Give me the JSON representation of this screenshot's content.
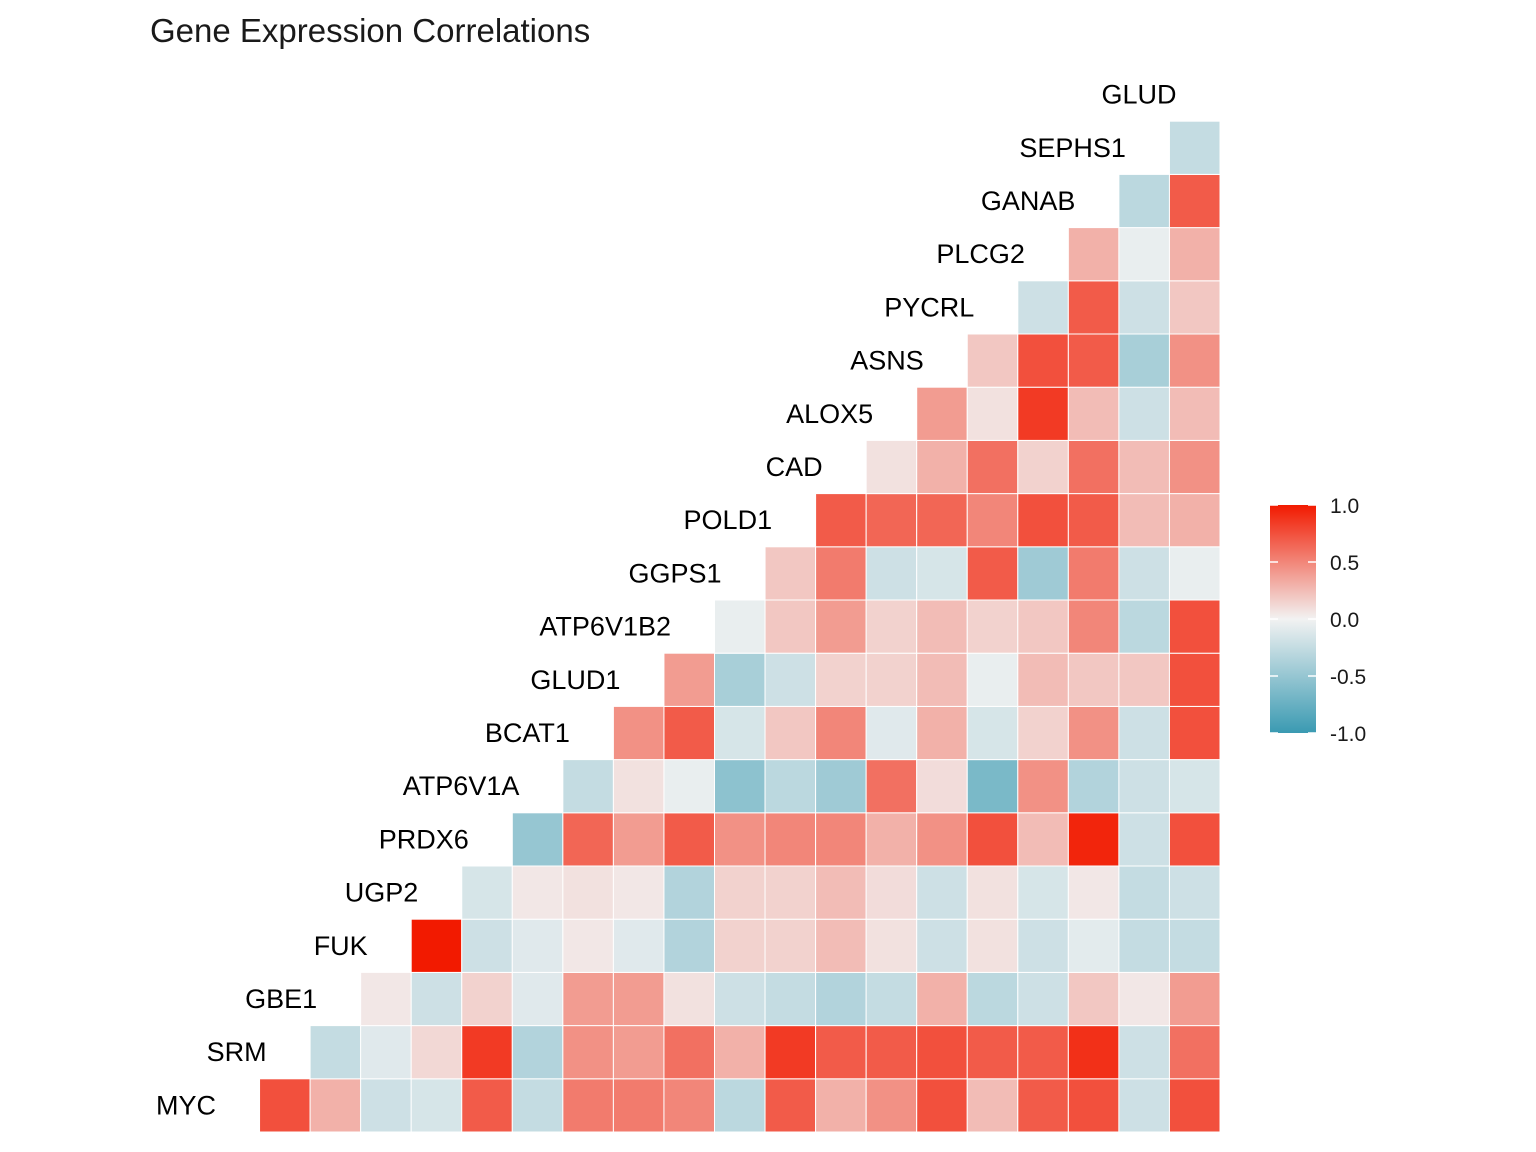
{
  "chart_data": {
    "type": "heatmap",
    "title": "Gene Expression Correlations",
    "genes": [
      "MYC",
      "SRM",
      "GBE1",
      "FUK",
      "UGP2",
      "PRDX6",
      "ATP6V1A",
      "BCAT1",
      "GLUD1",
      "ATP6V1B2",
      "GGPS1",
      "POLD1",
      "CAD",
      "ALOX5",
      "ASNS",
      "PYCRL",
      "PLCG2",
      "GANAB",
      "SEPHS1",
      "GLUD"
    ],
    "rows": [
      [
        0.75
      ],
      [
        0.3,
        -0.25
      ],
      [
        -0.2,
        -0.1,
        0.05
      ],
      [
        -0.15,
        0.12,
        -0.2,
        1.0
      ],
      [
        0.7,
        0.85,
        0.15,
        -0.2,
        -0.15
      ],
      [
        -0.25,
        -0.35,
        -0.1,
        -0.1,
        0.05,
        -0.5
      ],
      [
        0.55,
        0.45,
        0.4,
        0.05,
        0.08,
        0.65,
        -0.25
      ],
      [
        0.55,
        0.4,
        0.4,
        -0.1,
        0.05,
        0.4,
        0.08,
        0.45
      ],
      [
        0.5,
        0.6,
        0.08,
        -0.35,
        -0.35,
        0.7,
        -0.05,
        0.7,
        0.4
      ],
      [
        -0.3,
        0.3,
        -0.2,
        0.15,
        0.15,
        0.45,
        -0.55,
        -0.15,
        -0.4,
        -0.05
      ],
      [
        0.7,
        0.85,
        -0.25,
        0.15,
        0.15,
        0.5,
        -0.3,
        0.2,
        -0.2,
        0.2,
        0.2
      ],
      [
        0.3,
        0.7,
        -0.35,
        0.25,
        0.25,
        0.5,
        -0.45,
        0.5,
        0.15,
        0.4,
        0.55,
        0.7
      ],
      [
        0.45,
        0.7,
        -0.25,
        0.08,
        0.1,
        0.3,
        0.6,
        -0.1,
        0.15,
        0.15,
        -0.2,
        0.65,
        0.08
      ],
      [
        0.75,
        0.75,
        0.3,
        -0.2,
        -0.2,
        0.45,
        0.1,
        0.3,
        0.25,
        0.25,
        -0.15,
        0.65,
        0.3,
        0.4
      ],
      [
        0.25,
        0.7,
        -0.3,
        0.08,
        0.08,
        0.75,
        -0.65,
        -0.15,
        -0.05,
        0.15,
        0.7,
        0.5,
        0.6,
        0.08,
        0.2
      ],
      [
        0.7,
        0.7,
        -0.2,
        -0.2,
        -0.15,
        0.25,
        0.45,
        0.15,
        0.25,
        0.2,
        -0.45,
        0.75,
        0.15,
        0.85,
        0.75,
        -0.2
      ],
      [
        0.75,
        0.9,
        0.2,
        -0.08,
        0.05,
        0.95,
        -0.35,
        0.45,
        0.2,
        0.5,
        0.55,
        0.7,
        0.6,
        0.25,
        0.7,
        0.7,
        0.3
      ],
      [
        -0.2,
        -0.2,
        0.05,
        -0.25,
        -0.25,
        -0.2,
        -0.2,
        -0.2,
        0.2,
        -0.3,
        -0.2,
        0.25,
        0.25,
        -0.2,
        -0.4,
        -0.2,
        -0.05,
        -0.3
      ],
      [
        0.75,
        0.6,
        0.4,
        -0.25,
        -0.2,
        0.75,
        -0.15,
        0.75,
        0.75,
        0.75,
        -0.05,
        0.3,
        0.45,
        0.25,
        0.45,
        0.2,
        0.3,
        0.7,
        -0.25
      ]
    ],
    "color_scale": {
      "low": "#3A9AB2",
      "mid": "#F2F2F2",
      "high": "#F21A00",
      "limits": [
        -1.0,
        1.0
      ]
    },
    "legend": {
      "position": "right",
      "ticks": [
        "1.0",
        "0.5",
        "0.0",
        "-0.5",
        "-1.0"
      ],
      "values": [
        1.0,
        0.5,
        0.0,
        -0.5,
        -1.0
      ]
    },
    "grid": false
  }
}
